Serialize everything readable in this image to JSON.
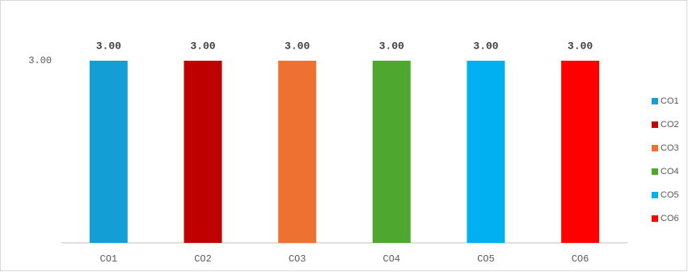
{
  "chart_data": {
    "type": "bar",
    "categories": [
      "CO1",
      "CO2",
      "CO3",
      "CO4",
      "CO5",
      "CO6"
    ],
    "series": [
      {
        "name": "CO1",
        "color": "#139fd6"
      },
      {
        "name": "CO2",
        "color": "#c00000"
      },
      {
        "name": "CO3",
        "color": "#ed7232"
      },
      {
        "name": "CO4",
        "color": "#4ea72e"
      },
      {
        "name": "CO5",
        "color": "#00b0f0"
      },
      {
        "name": "CO6",
        "color": "#ff0000"
      }
    ],
    "values": [
      3,
      3,
      3,
      3,
      3,
      3
    ],
    "value_labels": [
      "3.00",
      "3.00",
      "3.00",
      "3.00",
      "3.00",
      "3.00"
    ],
    "ylim": [
      0,
      3.6
    ],
    "yticks": [
      {
        "value": 3,
        "label": "3.00"
      }
    ],
    "grid": false,
    "legend": "right"
  }
}
